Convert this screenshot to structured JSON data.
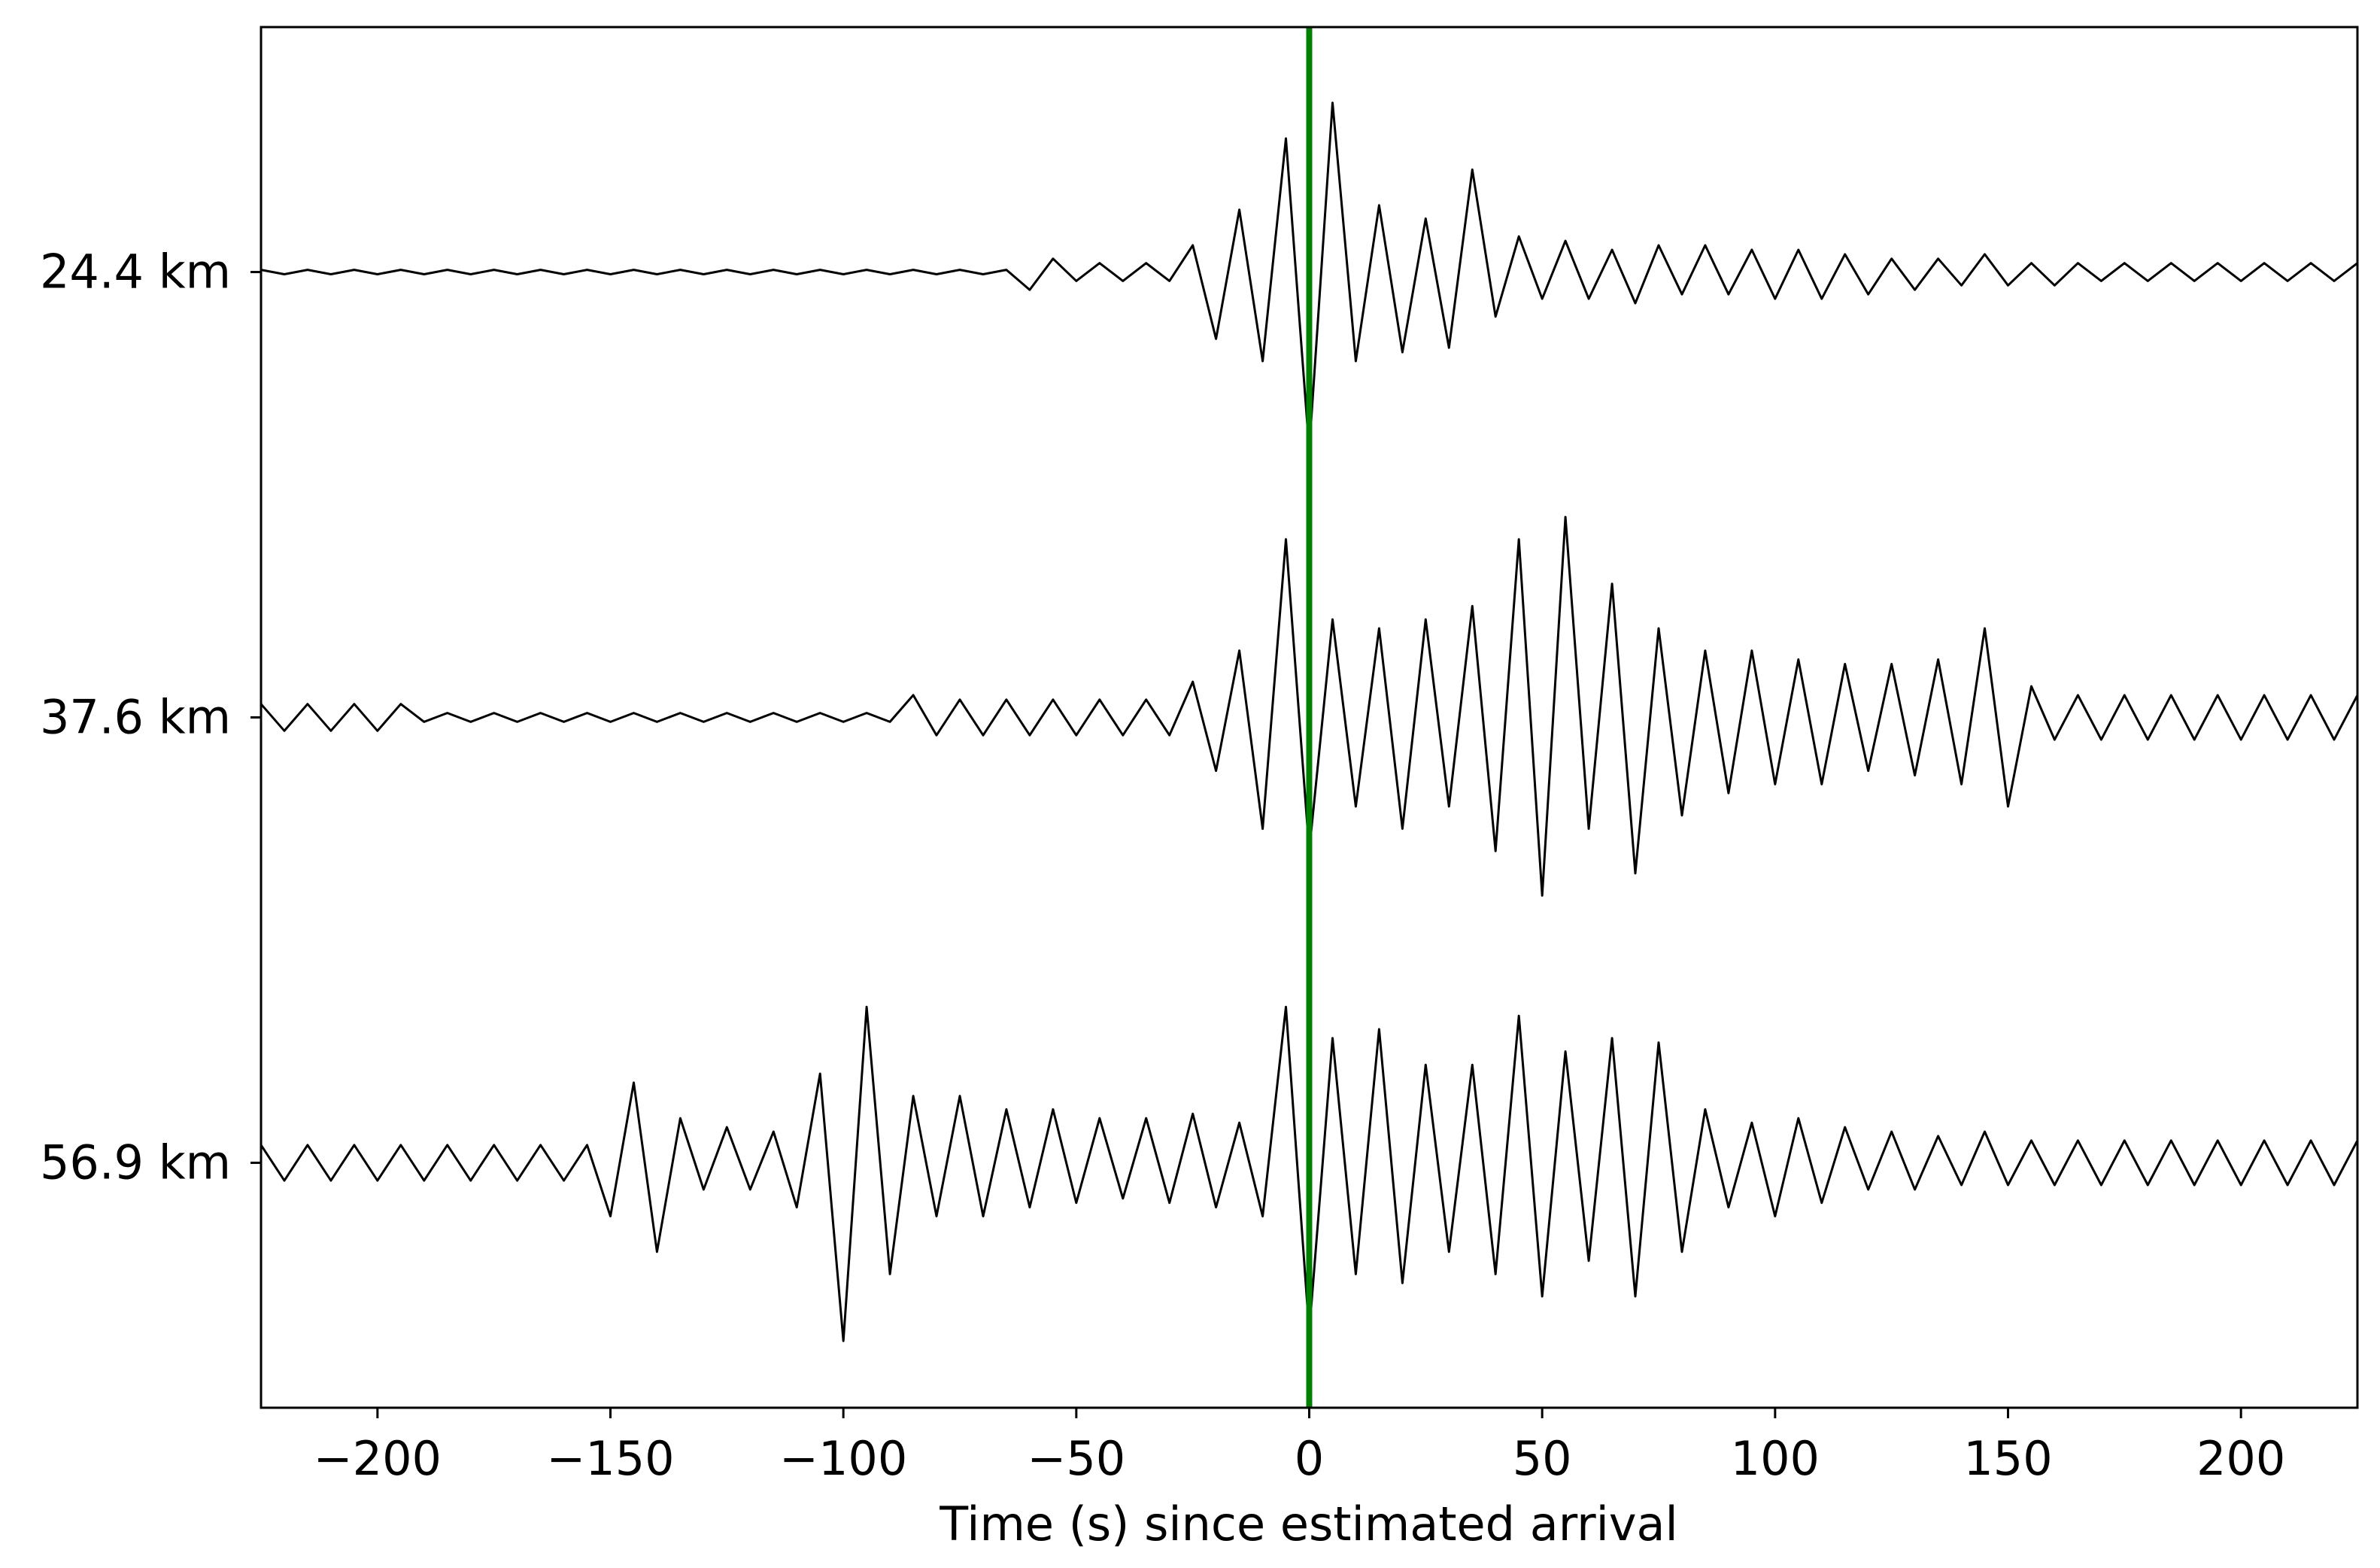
{
  "chart_data": {
    "type": "seismogram",
    "xlabel": "Time (s) since estimated arrival",
    "xlim": [
      -225,
      225
    ],
    "xticks": [
      {
        "value": -200,
        "label": "−200"
      },
      {
        "value": -150,
        "label": "−150"
      },
      {
        "value": -100,
        "label": "−100"
      },
      {
        "value": -50,
        "label": "−50"
      },
      0,
      50,
      100,
      150,
      200
    ],
    "ylim": [
      -0.55,
      2.55
    ],
    "categories": [
      "24.4 km",
      "37.6 km",
      "56.9 km"
    ],
    "x": [
      -225,
      -220,
      -215,
      -210,
      -205,
      -200,
      -195,
      -190,
      -185,
      -180,
      -175,
      -170,
      -165,
      -160,
      -155,
      -150,
      -145,
      -140,
      -135,
      -130,
      -125,
      -120,
      -115,
      -110,
      -105,
      -100,
      -95,
      -90,
      -85,
      -80,
      -75,
      -70,
      -65,
      -60,
      -55,
      -50,
      -45,
      -40,
      -35,
      -30,
      -25,
      -20,
      -15,
      -10,
      -5,
      0,
      5,
      10,
      15,
      20,
      25,
      30,
      35,
      40,
      45,
      50,
      55,
      60,
      65,
      70,
      75,
      80,
      85,
      90,
      95,
      100,
      105,
      110,
      115,
      120,
      125,
      130,
      135,
      140,
      145,
      150,
      155,
      160,
      165,
      170,
      175,
      180,
      185,
      190,
      195,
      200,
      205,
      210,
      215,
      220,
      225
    ],
    "color": "#000000",
    "traces": [
      {
        "values": [
          0.005,
          -0.005,
          0.005,
          -0.005,
          0.005,
          -0.005,
          0.005,
          -0.005,
          0.005,
          -0.005,
          0.005,
          -0.005,
          0.005,
          -0.005,
          0.005,
          -0.005,
          0.005,
          -0.005,
          0.005,
          -0.005,
          0.005,
          -0.005,
          0.005,
          -0.005,
          0.005,
          -0.005,
          0.005,
          -0.005,
          0.005,
          -0.005,
          0.005,
          -0.005,
          0.005,
          -0.04,
          0.03,
          -0.02,
          0.02,
          -0.02,
          0.02,
          -0.02,
          0.06,
          -0.15,
          0.14,
          -0.2,
          0.3,
          -0.4,
          0.38,
          -0.2,
          0.15,
          -0.18,
          0.12,
          -0.17,
          0.23,
          -0.1,
          0.08,
          -0.06,
          0.07,
          -0.06,
          0.05,
          -0.07,
          0.06,
          -0.05,
          0.06,
          -0.05,
          0.05,
          -0.06,
          0.05,
          -0.06,
          0.04,
          -0.05,
          0.03,
          -0.04,
          0.03,
          -0.03,
          0.04,
          -0.03,
          0.02,
          -0.03,
          0.02,
          -0.02,
          0.02,
          -0.02,
          0.02,
          -0.02,
          0.02,
          -0.02,
          0.02,
          -0.02,
          0.02,
          -0.02,
          0.02
        ]
      },
      {
        "values": [
          0.03,
          -0.03,
          0.03,
          -0.03,
          0.03,
          -0.03,
          0.03,
          -0.01,
          0.01,
          -0.01,
          0.01,
          -0.01,
          0.01,
          -0.01,
          0.01,
          -0.01,
          0.01,
          -0.01,
          0.01,
          -0.01,
          0.01,
          -0.01,
          0.01,
          -0.01,
          0.01,
          -0.01,
          0.01,
          -0.01,
          0.05,
          -0.04,
          0.04,
          -0.04,
          0.04,
          -0.04,
          0.04,
          -0.04,
          0.04,
          -0.04,
          0.04,
          -0.04,
          0.08,
          -0.12,
          0.15,
          -0.25,
          0.4,
          -0.3,
          0.22,
          -0.2,
          0.2,
          -0.25,
          0.22,
          -0.2,
          0.25,
          -0.3,
          0.4,
          -0.4,
          0.45,
          -0.25,
          0.3,
          -0.35,
          0.2,
          -0.22,
          0.15,
          -0.17,
          0.15,
          -0.15,
          0.13,
          -0.15,
          0.12,
          -0.12,
          0.12,
          -0.13,
          0.13,
          -0.15,
          0.2,
          -0.2,
          0.07,
          -0.05,
          0.05,
          -0.05,
          0.05,
          -0.05,
          0.05,
          -0.05,
          0.05,
          -0.05,
          0.05,
          -0.05,
          0.05,
          -0.05,
          0.05
        ]
      },
      {
        "values": [
          0.04,
          -0.04,
          0.04,
          -0.04,
          0.04,
          -0.04,
          0.04,
          -0.04,
          0.04,
          -0.04,
          0.04,
          -0.04,
          0.04,
          -0.04,
          0.04,
          -0.12,
          0.18,
          -0.2,
          0.1,
          -0.06,
          0.08,
          -0.06,
          0.07,
          -0.1,
          0.2,
          -0.4,
          0.35,
          -0.25,
          0.15,
          -0.12,
          0.15,
          -0.12,
          0.12,
          -0.1,
          0.12,
          -0.09,
          0.1,
          -0.08,
          0.1,
          -0.09,
          0.11,
          -0.1,
          0.09,
          -0.12,
          0.35,
          -0.38,
          0.28,
          -0.25,
          0.3,
          -0.27,
          0.22,
          -0.2,
          0.22,
          -0.25,
          0.33,
          -0.3,
          0.25,
          -0.22,
          0.28,
          -0.3,
          0.27,
          -0.2,
          0.12,
          -0.1,
          0.09,
          -0.12,
          0.1,
          -0.09,
          0.08,
          -0.06,
          0.07,
          -0.06,
          0.06,
          -0.05,
          0.07,
          -0.05,
          0.05,
          -0.05,
          0.05,
          -0.05,
          0.05,
          -0.05,
          0.05,
          -0.05,
          0.05,
          -0.05,
          0.05,
          -0.05,
          0.05,
          -0.05,
          0.05
        ]
      }
    ],
    "vline": {
      "x": 0,
      "color": "#008000"
    }
  }
}
